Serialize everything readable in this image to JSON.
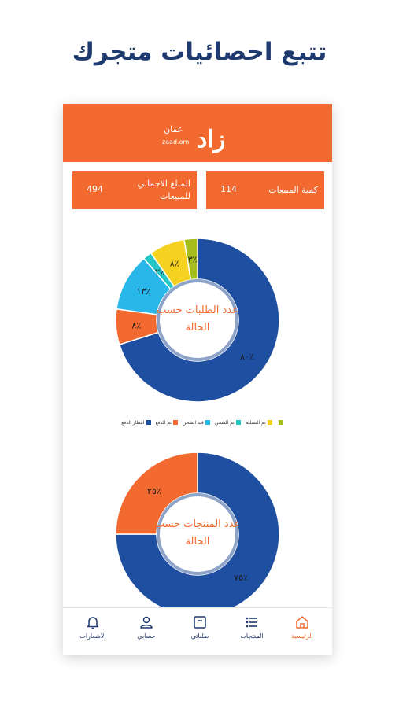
{
  "headline": "تتبع احصائيات متجرك",
  "header": {
    "logo_mark": "زاد",
    "logo_ar": "عمان",
    "logo_en": "zaad.om"
  },
  "stats": {
    "total_amount_label": "المبلغ الاجمالي للمبيعات",
    "total_amount_value": "494",
    "sales_quantity_label": "كمية المبيعات",
    "sales_quantity_value": "114"
  },
  "chart_data": [
    {
      "type": "pie",
      "title": "عدد الطلبات حسب الحالة",
      "slices": [
        {
          "name": "انتظار الدفع",
          "value": 80,
          "label": "٨٠٪",
          "color": "#1f4fa0"
        },
        {
          "name": "تم الدفع",
          "value": 8,
          "label": "٨٪",
          "color": "#f26a30"
        },
        {
          "name": "قيد الشحن",
          "value": 13,
          "label": "١٣٪",
          "color": "#29b6e8"
        },
        {
          "name": "تم الشحن",
          "value": 2,
          "label": "٢٪",
          "color": "#26c6c6"
        },
        {
          "name": "تم التسليم",
          "value": 8,
          "label": "٨٪",
          "color": "#f5d21f"
        },
        {
          "name": "",
          "value": 3,
          "label": "٣٪",
          "color": "#a6bd1e"
        }
      ]
    },
    {
      "type": "pie",
      "title": "عدد المنتجات حسب الحالة",
      "slices": [
        {
          "name": "",
          "value": 75,
          "label": "٧٥٪",
          "color": "#1f4fa0"
        },
        {
          "name": "",
          "value": 25,
          "label": "٢٥٪",
          "color": "#f26a30"
        }
      ]
    }
  ],
  "legend": [
    {
      "name": "انتظار الدفع",
      "color": "#1f4fa0"
    },
    {
      "name": "تم الدفع",
      "color": "#f26a30"
    },
    {
      "name": "قيد الشحن",
      "color": "#29b6e8"
    },
    {
      "name": "تم الشحن",
      "color": "#26c6c6"
    },
    {
      "name": "تم التسليم",
      "color": "#f5d21f"
    },
    {
      "name": "",
      "color": "#a6bd1e"
    }
  ],
  "nav": {
    "home": "الرئيسية",
    "products": "المنتجات",
    "orders": "طلباتي",
    "account": "حسابي",
    "notifications": "الاشعارات"
  }
}
